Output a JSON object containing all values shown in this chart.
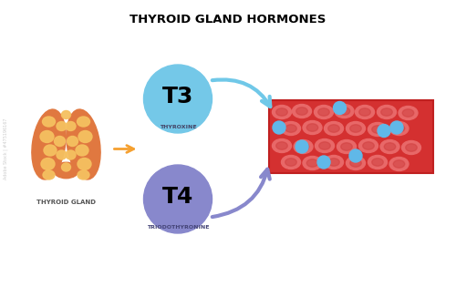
{
  "title": "THYROID GLAND HORMONES",
  "title_fontsize": 9.5,
  "title_fontweight": "bold",
  "thyroid_label": "THYROID GLAND",
  "t3_label": "T3",
  "t3_sublabel": "THYROXINE",
  "t4_label": "T4",
  "t4_sublabel": "TRIODOTHYRONINE",
  "t3_circle_color": "#74C8E8",
  "t4_circle_color": "#8888CC",
  "bg_color": "#FFFFFF",
  "thyroid_outer": "#E07840",
  "thyroid_inner": "#F5C060",
  "blood_bg": "#D43030",
  "blood_border": "#C02020",
  "rbc_color": "#E86868",
  "rbc_dark": "#D04040",
  "platelet_color": "#60B8E8",
  "arrow_orange": "#F5A030",
  "arrow_t3_color": "#70C8E8",
  "arrow_t4_color": "#8888CC",
  "label_color": "#555555",
  "watermark_color": "#CCCCCC",
  "xlim": [
    0,
    10
  ],
  "ylim": [
    0,
    6.52
  ]
}
